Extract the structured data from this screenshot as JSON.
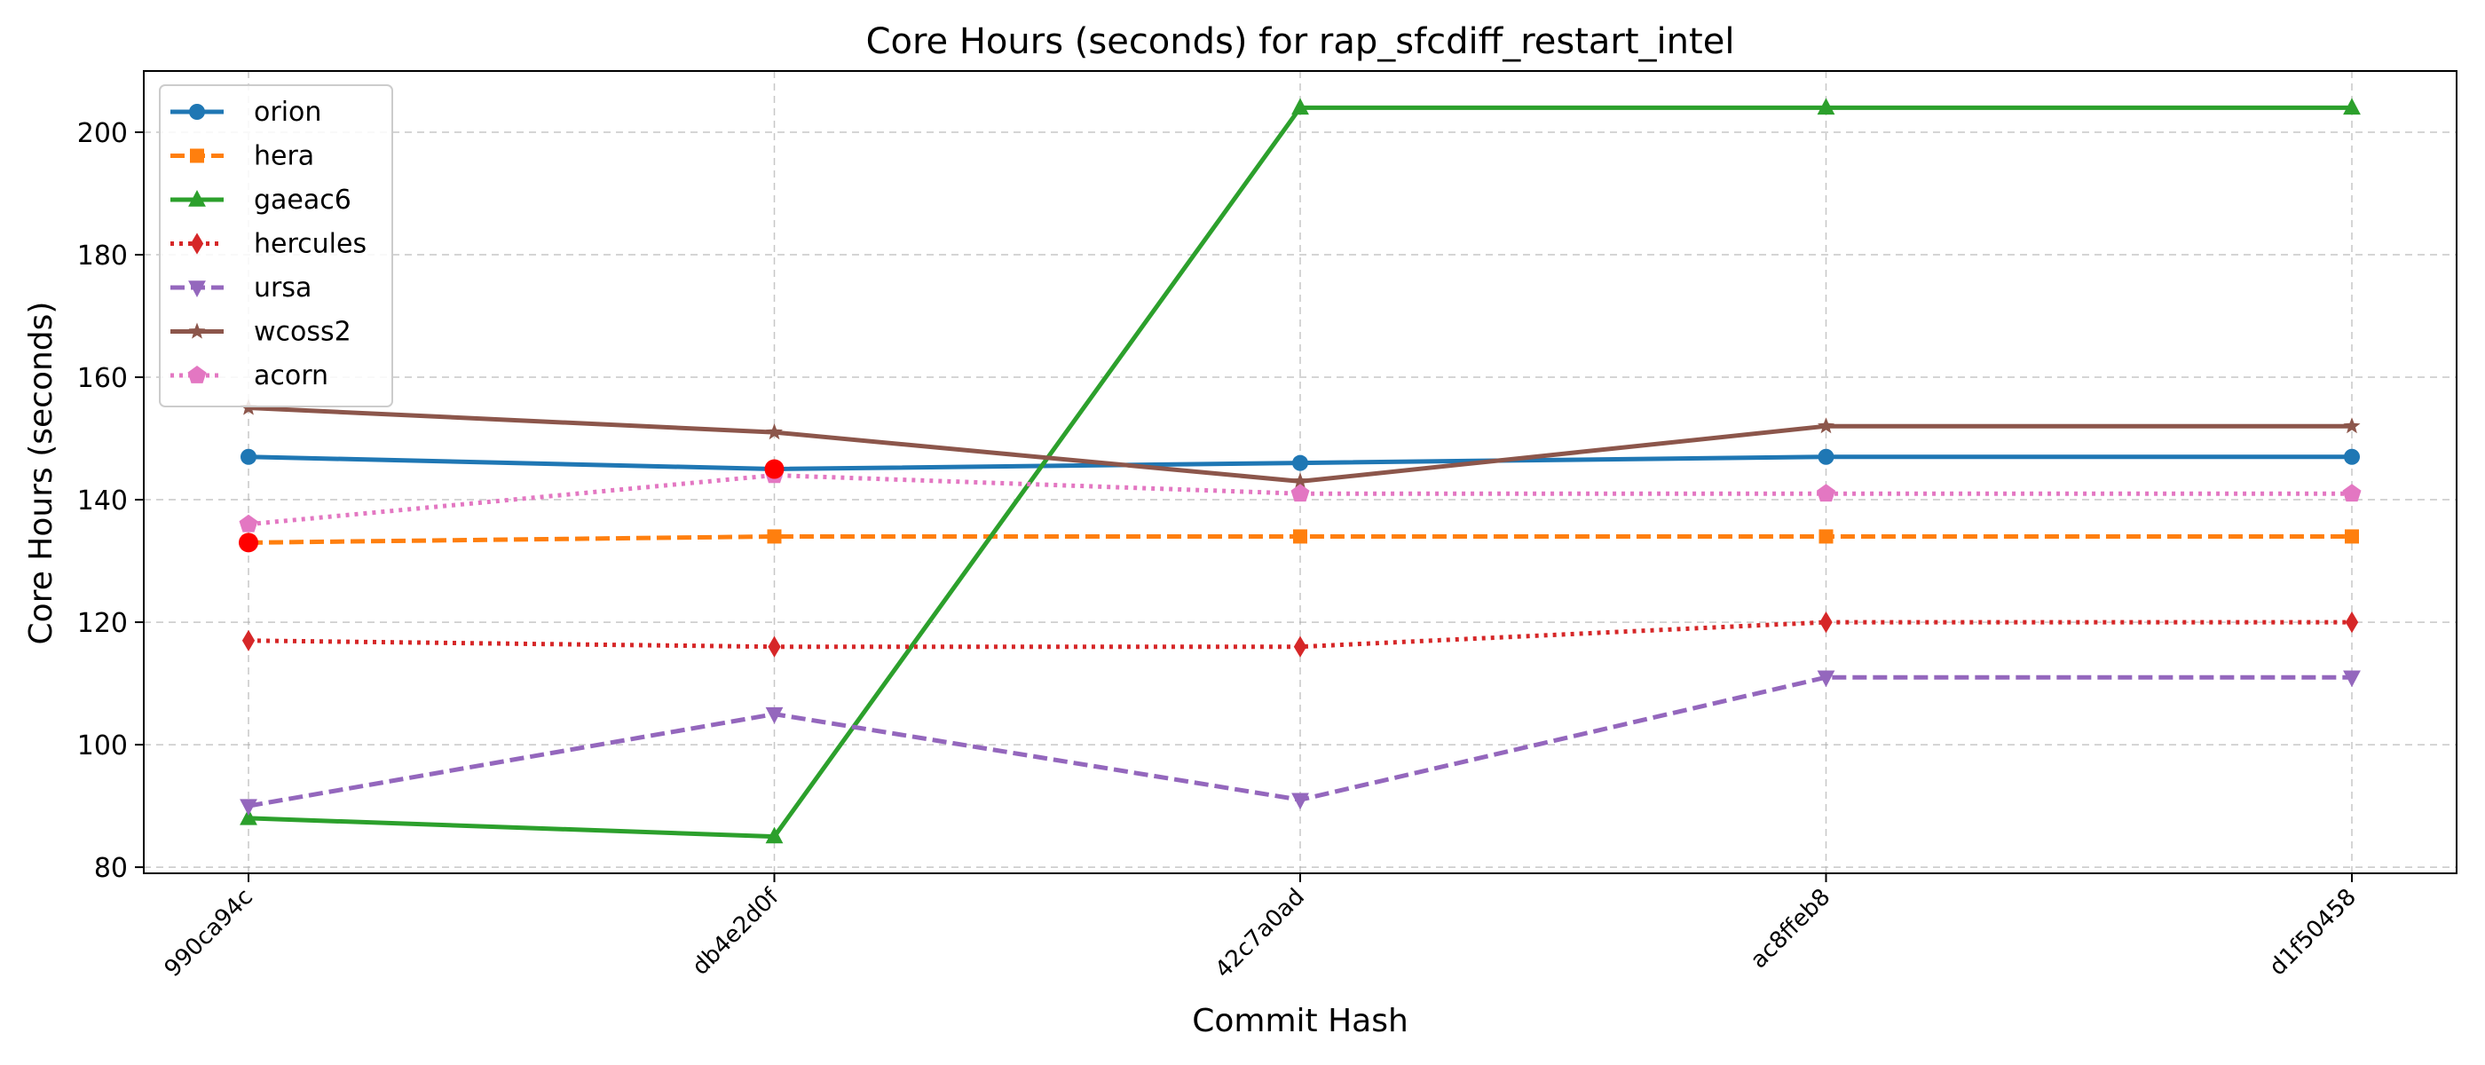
{
  "chart_data": {
    "type": "line",
    "title": "Core Hours (seconds) for rap_sfcdiff_restart_intel",
    "xlabel": "Commit Hash",
    "ylabel": "Core Hours (seconds)",
    "categories": [
      "990ca94c",
      "db4e2d0f",
      "42c7a0ad",
      "ac8ffeb8",
      "d1f50458"
    ],
    "ylim": [
      79,
      210
    ],
    "yticks": [
      80,
      100,
      120,
      140,
      160,
      180,
      200
    ],
    "grid": true,
    "legend_position": "top-left",
    "series": [
      {
        "name": "orion",
        "values": [
          147,
          145,
          146,
          147,
          147
        ],
        "color": "#1f77b4",
        "dash": "solid",
        "marker": "circle"
      },
      {
        "name": "hera",
        "values": [
          133,
          134,
          134,
          134,
          134
        ],
        "color": "#ff7f0e",
        "dash": "dashed",
        "marker": "square"
      },
      {
        "name": "gaeac6",
        "values": [
          88,
          85,
          204,
          204,
          204
        ],
        "color": "#2ca02c",
        "dash": "solid",
        "marker": "triangle-up"
      },
      {
        "name": "hercules",
        "values": [
          117,
          116,
          116,
          120,
          120
        ],
        "color": "#d62728",
        "dash": "dotted",
        "marker": "diamond"
      },
      {
        "name": "ursa",
        "values": [
          90,
          105,
          91,
          111,
          111
        ],
        "color": "#9467bd",
        "dash": "dashed",
        "marker": "triangle-down"
      },
      {
        "name": "wcoss2",
        "values": [
          155,
          151,
          143,
          152,
          152
        ],
        "color": "#8c564b",
        "dash": "solid",
        "marker": "star"
      },
      {
        "name": "acorn",
        "values": [
          136,
          144,
          141,
          141,
          141
        ],
        "color": "#e377c2",
        "dash": "dotted",
        "marker": "pentagon"
      }
    ],
    "highlights": [
      {
        "category": "990ca94c",
        "value": 133,
        "color": "#ff0000"
      },
      {
        "category": "db4e2d0f",
        "value": 145,
        "color": "#ff0000"
      }
    ]
  }
}
